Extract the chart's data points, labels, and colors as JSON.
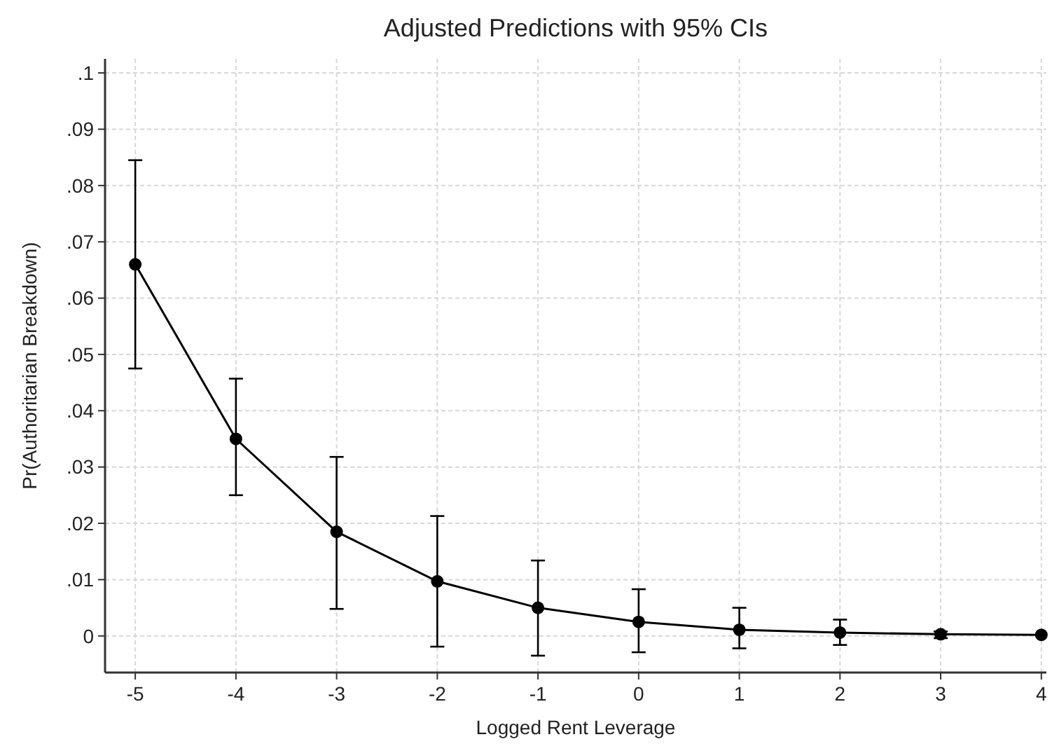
{
  "chart_data": {
    "type": "line",
    "title": "Adjusted Predictions with 95% CIs",
    "xlabel": "Logged Rent Leverage",
    "ylabel": "Pr(Authoritarian Breakdown)",
    "x": [
      -5,
      -4,
      -3,
      -2,
      -1,
      0,
      1,
      2,
      3,
      4
    ],
    "series": [
      {
        "color": "#000000",
        "values": [
          0.066,
          0.035,
          0.0185,
          0.0097,
          0.005,
          0.0025,
          0.0011,
          0.0006,
          0.0003,
          0.0002
        ],
        "errors": [
          [
            0.0475,
            0.0845
          ],
          [
            0.025,
            0.0457
          ],
          [
            0.0048,
            0.0318
          ],
          [
            -0.0019,
            0.0213
          ],
          [
            -0.0035,
            0.0134
          ],
          [
            -0.0029,
            0.0083
          ],
          [
            -0.0022,
            0.005
          ],
          [
            -0.0016,
            0.0029
          ],
          [
            -0.0004,
            0.0008
          ],
          null
        ]
      }
    ],
    "xlim": [
      -5.3,
      4.05
    ],
    "xticks": [
      -5,
      -4,
      -3,
      -2,
      -1,
      0,
      1,
      2,
      3,
      4
    ],
    "ylim": [
      -0.0065,
      0.1025
    ],
    "yticks": [
      {
        "value": 0,
        "label": "0"
      },
      {
        "value": 0.01,
        "label": ".01"
      },
      {
        "value": 0.02,
        "label": ".02"
      },
      {
        "value": 0.03,
        "label": ".03"
      },
      {
        "value": 0.04,
        "label": ".04"
      },
      {
        "value": 0.05,
        "label": ".05"
      },
      {
        "value": 0.06,
        "label": ".06"
      },
      {
        "value": 0.07,
        "label": ".07"
      },
      {
        "value": 0.08,
        "label": ".08"
      },
      {
        "value": 0.09,
        "label": ".09"
      },
      {
        "value": 0.1,
        "label": ".1"
      }
    ],
    "grid": true,
    "marker": "circle",
    "line_style": "solid"
  }
}
